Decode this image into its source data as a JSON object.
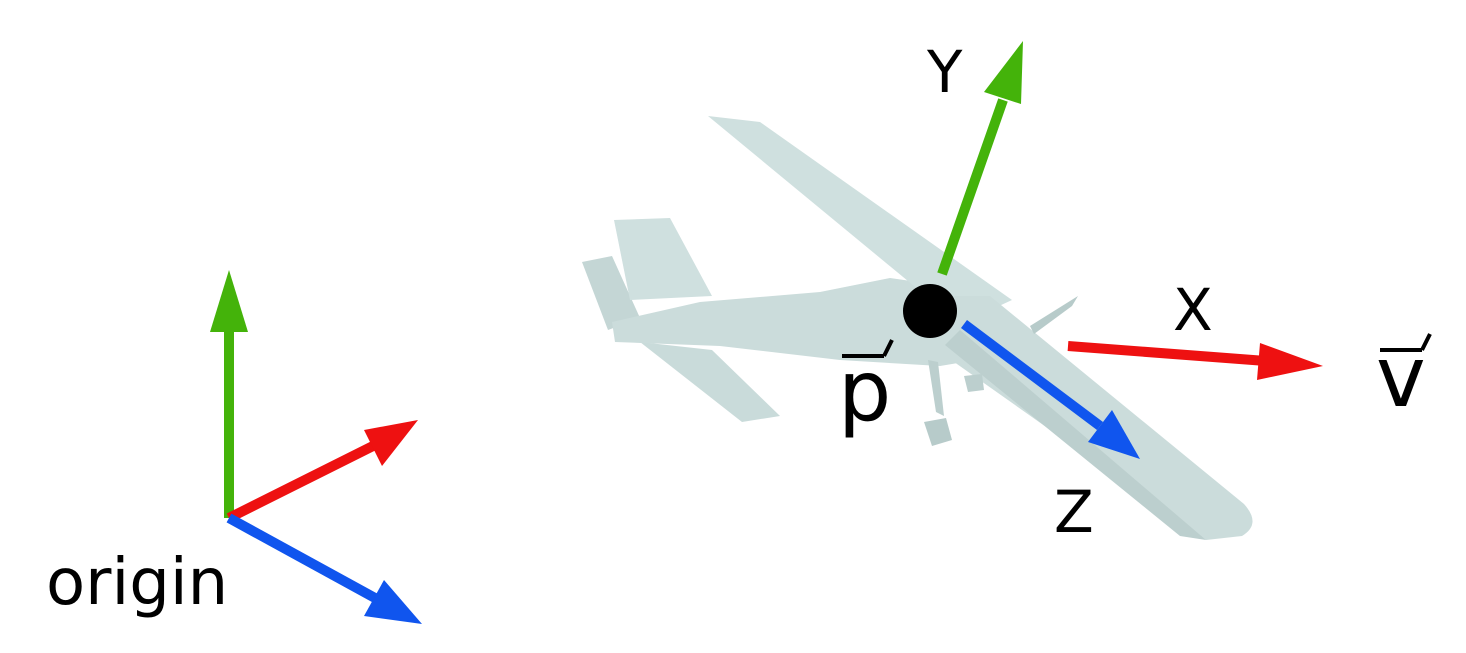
{
  "labels": {
    "origin": "origin",
    "position": "p",
    "velocity": "v",
    "axis_x": "X",
    "axis_y": "Y",
    "axis_z": "Z"
  },
  "colors": {
    "x_axis": "#ee1111",
    "y_axis": "#44b30a",
    "z_axis": "#1055ee",
    "aircraft": "#cddedd",
    "aircraft_shade": "#b7cbca",
    "point": "#000000"
  },
  "icons": {
    "aircraft": "aircraft-model",
    "position_point": "filled-circle"
  }
}
